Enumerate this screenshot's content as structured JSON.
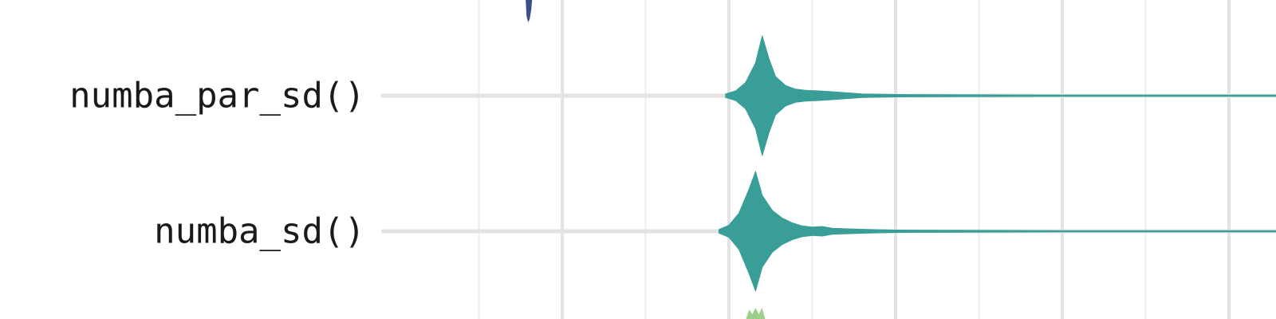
{
  "chart_data": {
    "type": "violin",
    "title": "",
    "xlabel": "",
    "ylabel": "",
    "grid": true,
    "categories": [
      "numba_par_sd()",
      "numba_sd()"
    ],
    "series": [
      {
        "category": "numba_par_sd()",
        "color": "#3a9e98",
        "min": 0.99,
        "max": 3.35,
        "density": [
          [
            0.99,
            0.03
          ],
          [
            1.02,
            0.08
          ],
          [
            1.05,
            0.22
          ],
          [
            1.08,
            0.55
          ],
          [
            1.1,
            1.0
          ],
          [
            1.12,
            0.62
          ],
          [
            1.14,
            0.32
          ],
          [
            1.17,
            0.17
          ],
          [
            1.2,
            0.11
          ],
          [
            1.23,
            0.09
          ],
          [
            1.27,
            0.08
          ],
          [
            1.3,
            0.07
          ],
          [
            1.35,
            0.05
          ],
          [
            1.4,
            0.03
          ],
          [
            1.5,
            0.02
          ],
          [
            2.0,
            0.01
          ],
          [
            2.8,
            0.01
          ],
          [
            3.35,
            0.005
          ]
        ]
      },
      {
        "category": "numba_sd()",
        "color": "#3a9e98",
        "min": 0.97,
        "max": 3.34,
        "density": [
          [
            0.97,
            0.03
          ],
          [
            1.0,
            0.1
          ],
          [
            1.03,
            0.3
          ],
          [
            1.06,
            0.7
          ],
          [
            1.08,
            1.0
          ],
          [
            1.1,
            0.6
          ],
          [
            1.13,
            0.35
          ],
          [
            1.16,
            0.22
          ],
          [
            1.19,
            0.14
          ],
          [
            1.22,
            0.09
          ],
          [
            1.25,
            0.07
          ],
          [
            1.28,
            0.08
          ],
          [
            1.31,
            0.05
          ],
          [
            1.36,
            0.04
          ],
          [
            1.42,
            0.03
          ],
          [
            1.5,
            0.02
          ],
          [
            2.0,
            0.01
          ],
          [
            2.8,
            0.01
          ],
          [
            3.34,
            0.005
          ]
        ]
      }
    ],
    "partial_marks": [
      {
        "x": 0.4,
        "color": "#3e4e8c",
        "position": "top-edge"
      },
      {
        "x": 1.08,
        "color": "#9ccf8c",
        "position": "bottom-edge"
      }
    ]
  }
}
